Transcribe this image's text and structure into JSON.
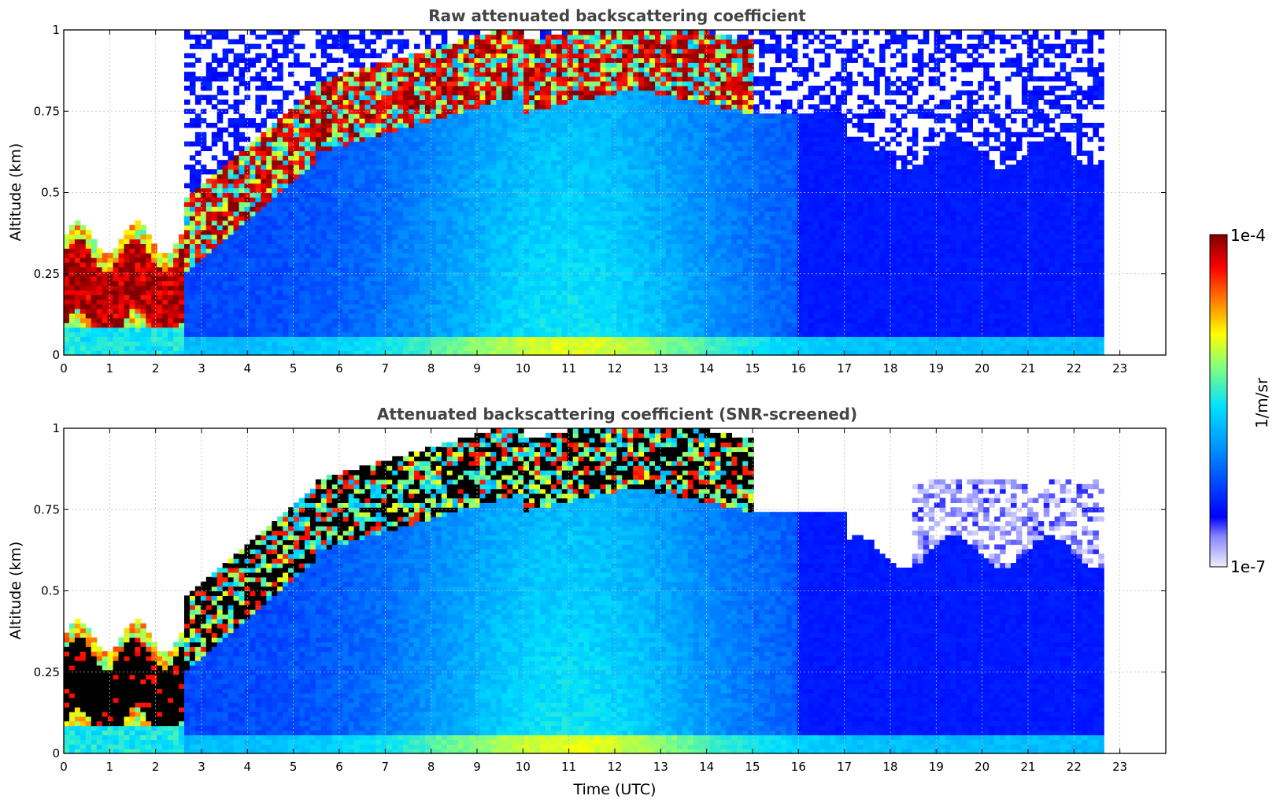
{
  "chart_data": [
    {
      "type": "heatmap",
      "title": "Raw attenuated backscattering coefficient",
      "xlabel": "",
      "ylabel": "Altitude (km)",
      "xlim": [
        0,
        24
      ],
      "ylim": [
        0,
        1
      ],
      "x_ticks": [
        "0",
        "1",
        "2",
        "3",
        "4",
        "5",
        "6",
        "7",
        "8",
        "9",
        "10",
        "11",
        "12",
        "13",
        "14",
        "15",
        "16",
        "17",
        "18",
        "19",
        "20",
        "21",
        "22",
        "23"
      ],
      "y_ticks": [
        "0",
        "0.25",
        "0.5",
        "0.75",
        "1"
      ],
      "grid": true,
      "data_end_time": 22.65,
      "features": {
        "low_layer": {
          "time_range": [
            0,
            2.6
          ],
          "altitude_range": [
            0.08,
            0.33
          ]
        },
        "rising_layer": {
          "time_range": [
            2.6,
            15.0
          ],
          "altitude_range": [
            0.7,
            1.0
          ]
        }
      }
    },
    {
      "type": "heatmap",
      "title": "Attenuated backscattering coefficient (SNR-screened)",
      "xlabel": "Time (UTC)",
      "ylabel": "Altitude (km)",
      "xlim": [
        0,
        24
      ],
      "ylim": [
        0,
        1
      ],
      "x_ticks": [
        "0",
        "1",
        "2",
        "3",
        "4",
        "5",
        "6",
        "7",
        "8",
        "9",
        "10",
        "11",
        "12",
        "13",
        "14",
        "15",
        "16",
        "17",
        "18",
        "19",
        "20",
        "21",
        "22",
        "23"
      ],
      "y_ticks": [
        "0",
        "0.25",
        "0.5",
        "0.75",
        "1"
      ],
      "grid": true,
      "data_end_time": 22.65
    }
  ],
  "colorbar": {
    "label": "1/m/sr",
    "max_label": "1e-4",
    "min_label": "1e-7",
    "scale": "log",
    "colormap": "jet",
    "colors": [
      "#eeeeff",
      "#0000ff",
      "#0080ff",
      "#00ffff",
      "#80ff80",
      "#ffff00",
      "#ff8000",
      "#ff0000",
      "#800000"
    ]
  }
}
